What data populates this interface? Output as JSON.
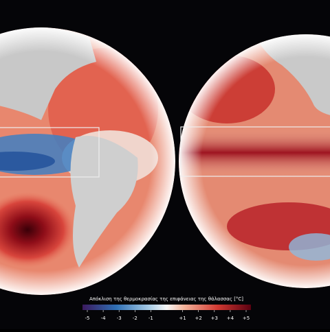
{
  "colorbar": {
    "label": "Απόκλιση της θερμοκρασίας της επιφάνειας της θάλασσας [°C]",
    "lim": [
      -5,
      5
    ],
    "ticks": [
      -5,
      -4,
      -3,
      -2,
      -1,
      {
        "value": 1,
        "label": "+1"
      },
      {
        "value": 2,
        "label": "+2"
      },
      {
        "value": 3,
        "label": "+3"
      },
      {
        "value": 4,
        "label": "+4"
      },
      {
        "value": 5,
        "label": "+5"
      }
    ]
  }
}
